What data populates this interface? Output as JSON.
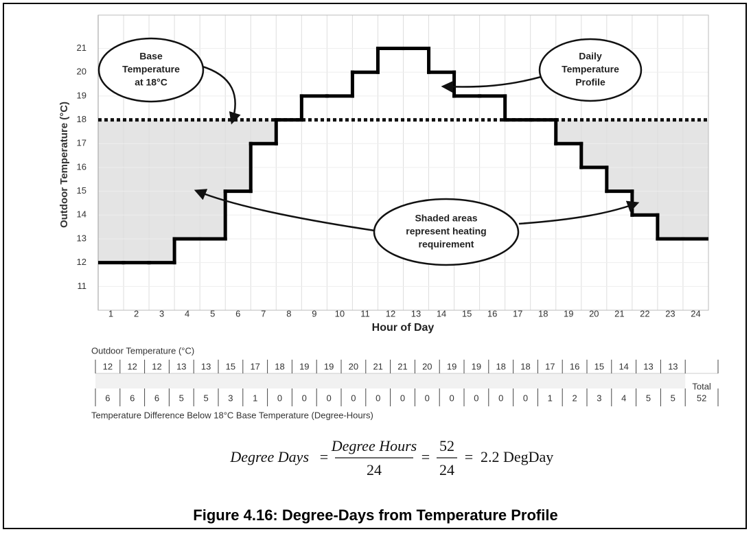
{
  "chart_data": {
    "type": "step",
    "title": "Figure 4.16:  Degree-Days from Temperature Profile",
    "ylabel": "Outdoor Temperature (°C)",
    "xlabel": "Hour of Day",
    "categories": [
      "1",
      "2",
      "3",
      "4",
      "5",
      "6",
      "7",
      "8",
      "9",
      "10",
      "11",
      "12",
      "13",
      "14",
      "15",
      "16",
      "17",
      "18",
      "19",
      "20",
      "21",
      "22",
      "23",
      "24"
    ],
    "values": [
      12,
      12,
      12,
      13,
      13,
      15,
      17,
      18,
      19,
      19,
      20,
      21,
      21,
      20,
      19,
      19,
      18,
      18,
      17,
      16,
      15,
      14,
      13,
      13
    ],
    "color": "#000000",
    "shade_color": "#e4e4e4",
    "base": 18,
    "ylim": [
      10,
      22.4
    ],
    "yticks": [
      11,
      12,
      13,
      14,
      15,
      16,
      17,
      18,
      19,
      20,
      21
    ],
    "grid": true,
    "annotations": [
      {
        "lines": [
          "Base",
          "Temperature",
          "at 18°C"
        ]
      },
      {
        "lines": [
          "Daily",
          "Temperature",
          "Profile"
        ]
      },
      {
        "lines": [
          "Shaded areas",
          "represent heating",
          "requirement"
        ]
      }
    ]
  },
  "table": {
    "label": "Outdoor Temperature (°C)",
    "differences": [
      6,
      6,
      6,
      5,
      5,
      3,
      1,
      0,
      0,
      0,
      0,
      0,
      0,
      0,
      0,
      0,
      0,
      0,
      1,
      2,
      3,
      4,
      5,
      5
    ],
    "total_label": "Total",
    "total": 52,
    "caption": "Temperature Difference Below 18°C Base Temperature (Degree-Hours)"
  },
  "formula": {
    "lhs": "Degree Days",
    "eq": "=",
    "numerator": "Degree Hours",
    "denominator": "24",
    "numerator2": "52",
    "denominator2": "24",
    "result": "2.2 DegDay"
  }
}
